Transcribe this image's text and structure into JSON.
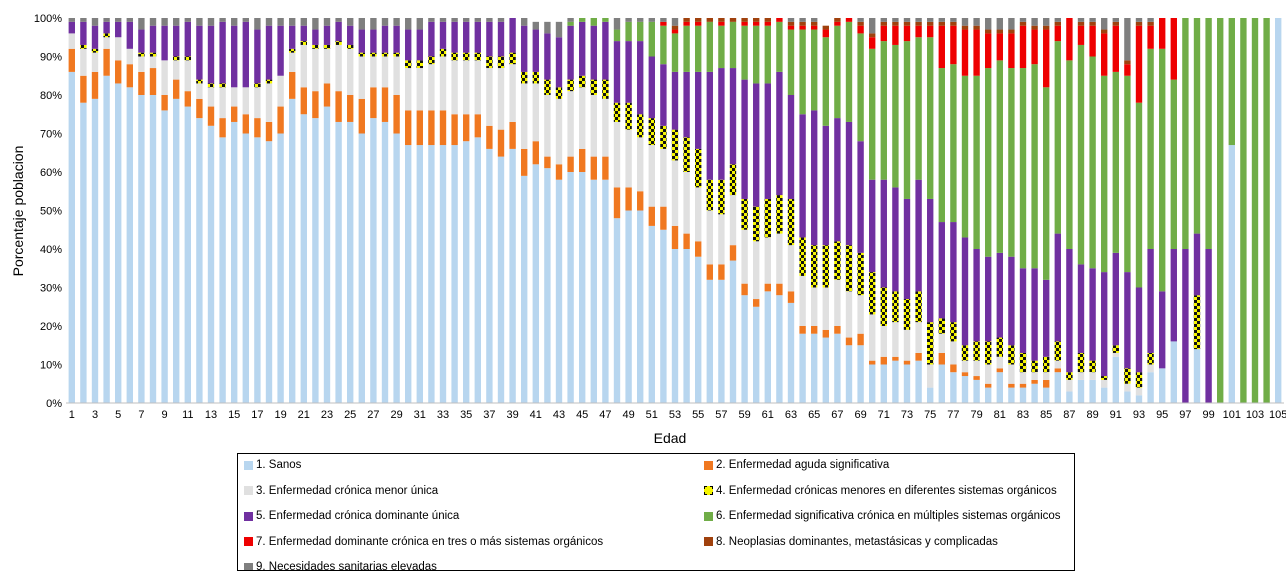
{
  "chart_data": {
    "type": "bar",
    "stacked": "percent",
    "xlabel": "Edad",
    "ylabel": "Porcentaje poblacion",
    "ylim": [
      0,
      100
    ],
    "y_ticks": [
      "0%",
      "10%",
      "20%",
      "30%",
      "40%",
      "50%",
      "60%",
      "70%",
      "80%",
      "90%",
      "100%"
    ],
    "categories": [
      1,
      2,
      3,
      4,
      5,
      6,
      7,
      8,
      9,
      10,
      11,
      12,
      13,
      14,
      15,
      16,
      17,
      18,
      19,
      20,
      21,
      22,
      23,
      24,
      25,
      26,
      27,
      28,
      29,
      30,
      31,
      32,
      33,
      34,
      35,
      36,
      37,
      38,
      39,
      40,
      41,
      42,
      43,
      44,
      45,
      46,
      47,
      48,
      49,
      50,
      51,
      52,
      53,
      54,
      55,
      56,
      57,
      58,
      59,
      60,
      61,
      62,
      63,
      64,
      65,
      66,
      67,
      68,
      69,
      70,
      71,
      72,
      73,
      74,
      75,
      76,
      77,
      78,
      79,
      80,
      81,
      82,
      83,
      84,
      85,
      86,
      87,
      88,
      89,
      90,
      91,
      92,
      93,
      94,
      95,
      96,
      97,
      98,
      99,
      100,
      101,
      102,
      103,
      104,
      105
    ],
    "x_tick_labels": [
      "1",
      "3",
      "5",
      "7",
      "9",
      "11",
      "13",
      "15",
      "17",
      "19",
      "21",
      "23",
      "25",
      "27",
      "29",
      "31",
      "33",
      "35",
      "37",
      "39",
      "41",
      "43",
      "45",
      "47",
      "49",
      "51",
      "53",
      "55",
      "57",
      "59",
      "61",
      "63",
      "65",
      "67",
      "69",
      "71",
      "73",
      "75",
      "77",
      "79",
      "81",
      "83",
      "85",
      "87",
      "89",
      "91",
      "93",
      "95",
      "97",
      "99",
      "101",
      "103",
      "105"
    ],
    "grid": false,
    "legend_position": "bottom",
    "series": [
      {
        "name": "1. Sanos",
        "color": "#b8d6ef",
        "pattern": "solid",
        "values": [
          86,
          78,
          79,
          85,
          83,
          82,
          80,
          80,
          76,
          79,
          77,
          74,
          72,
          69,
          73,
          70,
          69,
          68,
          70,
          79,
          75,
          74,
          77,
          73,
          73,
          70,
          74,
          73,
          70,
          67,
          67,
          67,
          67,
          67,
          68,
          69,
          66,
          64,
          66,
          59,
          62,
          61,
          58,
          60,
          60,
          58,
          58,
          48,
          50,
          50,
          46,
          45,
          40,
          40,
          38,
          32,
          32,
          37,
          28,
          25,
          29,
          28,
          26,
          18,
          18,
          17,
          18,
          15,
          15,
          10,
          10,
          11,
          10,
          11,
          4,
          10,
          8,
          7,
          6,
          4,
          8,
          4,
          4,
          5,
          4,
          8,
          3,
          6,
          6,
          4,
          12,
          3,
          2,
          8,
          9,
          16,
          0,
          14,
          0,
          0,
          67,
          0,
          0,
          0,
          100
        ]
      },
      {
        "name": "2. Enfermedad aguda significativa",
        "color": "#f07820",
        "pattern": "solid",
        "values": [
          6,
          7,
          7,
          7,
          6,
          6,
          6,
          7,
          4,
          5,
          4,
          5,
          5,
          5,
          4,
          5,
          5,
          5,
          7,
          7,
          7,
          7,
          6,
          8,
          7,
          9,
          8,
          9,
          10,
          9,
          9,
          9,
          9,
          8,
          7,
          6,
          6,
          7,
          7,
          7,
          6,
          3,
          4,
          4,
          6,
          6,
          6,
          8,
          6,
          5,
          5,
          6,
          6,
          4,
          4,
          4,
          4,
          4,
          3,
          2,
          2,
          3,
          3,
          2,
          2,
          2,
          2,
          2,
          3,
          1,
          2,
          1,
          1,
          2,
          0,
          3,
          2,
          1,
          1,
          1,
          1,
          1,
          1,
          1,
          2,
          1,
          0,
          0,
          0,
          0,
          0,
          0,
          0,
          0,
          0,
          0,
          0,
          0,
          0,
          0,
          0,
          0,
          0,
          0,
          0
        ]
      },
      {
        "name": "3. Enfermedad crónica menor única",
        "color": "#e0e0e0",
        "pattern": "solid",
        "values": [
          4,
          7,
          5,
          3,
          6,
          4,
          4,
          3,
          9,
          5,
          8,
          4,
          5,
          8,
          5,
          7,
          8,
          10,
          8,
          5,
          11,
          11,
          9,
          12,
          12,
          11,
          8,
          8,
          10,
          11,
          11,
          12,
          14,
          14,
          14,
          14,
          15,
          16,
          15,
          17,
          15,
          16,
          17,
          17,
          16,
          16,
          15,
          17,
          15,
          14,
          16,
          15,
          17,
          16,
          14,
          14,
          13,
          13,
          14,
          15,
          12,
          13,
          12,
          13,
          10,
          11,
          12,
          12,
          10,
          12,
          8,
          9,
          8,
          8,
          6,
          5,
          6,
          3,
          4,
          5,
          3,
          5,
          3,
          2,
          2,
          2,
          3,
          2,
          2,
          2,
          1,
          2,
          2,
          2,
          0,
          0,
          0,
          0,
          0,
          0,
          0,
          0,
          0,
          0,
          0
        ]
      },
      {
        "name": "4. Enfermedad crónicas menores en diferentes sistemas orgánicos",
        "color": "#f5f500",
        "pattern": "dashed",
        "values": [
          0,
          1,
          1,
          1,
          0,
          0,
          1,
          1,
          0,
          1,
          1,
          1,
          1,
          1,
          0,
          0,
          1,
          1,
          0,
          1,
          1,
          1,
          1,
          1,
          1,
          1,
          1,
          1,
          1,
          2,
          2,
          2,
          2,
          2,
          2,
          2,
          3,
          3,
          3,
          3,
          3,
          4,
          3,
          3,
          3,
          4,
          5,
          5,
          7,
          6,
          7,
          6,
          8,
          9,
          10,
          8,
          9,
          8,
          8,
          9,
          10,
          10,
          12,
          10,
          11,
          11,
          10,
          12,
          11,
          11,
          10,
          8,
          8,
          8,
          11,
          4,
          5,
          4,
          5,
          6,
          5,
          5,
          5,
          3,
          4,
          5,
          2,
          5,
          3,
          1,
          2,
          4,
          4,
          3,
          0,
          0,
          0,
          14,
          0,
          0,
          0,
          0,
          0,
          0,
          0
        ]
      },
      {
        "name": "5. Enfermedad crónica dominante única",
        "color": "#7030a0",
        "pattern": "solid",
        "values": [
          3,
          6,
          6,
          3,
          4,
          7,
          6,
          7,
          9,
          8,
          9,
          14,
          15,
          16,
          16,
          17,
          14,
          14,
          13,
          6,
          4,
          4,
          5,
          5,
          5,
          6,
          6,
          7,
          7,
          8,
          8,
          9,
          7,
          8,
          8,
          8,
          9,
          9,
          9,
          12,
          11,
          12,
          13,
          14,
          14,
          14,
          15,
          16,
          16,
          19,
          16,
          16,
          15,
          17,
          20,
          28,
          29,
          25,
          31,
          32,
          30,
          32,
          27,
          32,
          35,
          31,
          32,
          32,
          29,
          24,
          28,
          27,
          26,
          29,
          32,
          25,
          26,
          28,
          24,
          22,
          22,
          23,
          22,
          24,
          20,
          28,
          32,
          23,
          24,
          27,
          24,
          25,
          22,
          27,
          20,
          24,
          40,
          16,
          40,
          0,
          0,
          0,
          0,
          0,
          0
        ]
      },
      {
        "name": "6. Enfermedad significativa crónica en múltiples sistemas orgánicos",
        "color": "#70ad47",
        "pattern": "solid",
        "values": [
          0,
          0,
          0,
          0,
          0,
          0,
          0,
          0,
          0,
          0,
          0,
          0,
          0,
          0,
          0,
          0,
          0,
          0,
          0,
          0,
          0,
          0,
          0,
          0,
          0,
          0,
          0,
          0,
          0,
          0,
          0,
          0,
          0,
          0,
          0,
          0,
          0,
          0,
          0,
          0,
          0,
          0,
          0,
          1,
          1,
          2,
          1,
          3,
          5,
          5,
          9,
          10,
          10,
          12,
          12,
          13,
          11,
          12,
          14,
          15,
          15,
          13,
          17,
          22,
          21,
          23,
          24,
          26,
          28,
          34,
          36,
          37,
          41,
          37,
          42,
          40,
          41,
          42,
          45,
          49,
          50,
          49,
          52,
          53,
          50,
          50,
          49,
          57,
          55,
          51,
          47,
          51,
          48,
          52,
          63,
          44,
          60,
          70,
          60,
          100,
          33,
          100,
          100,
          100,
          0
        ]
      },
      {
        "name": "7. Enfermedad dominante crónica en tres o más sistemas orgánicos",
        "color": "#ee0000",
        "pattern": "solid",
        "values": [
          0,
          0,
          0,
          0,
          0,
          0,
          0,
          0,
          0,
          0,
          0,
          0,
          0,
          0,
          0,
          0,
          0,
          0,
          0,
          0,
          0,
          0,
          0,
          0,
          0,
          0,
          0,
          0,
          0,
          0,
          0,
          0,
          0,
          0,
          0,
          0,
          0,
          0,
          0,
          0,
          0,
          0,
          0,
          0,
          0,
          0,
          0,
          0,
          0,
          0,
          0,
          1,
          1,
          1,
          1,
          0,
          1,
          0,
          1,
          1,
          1,
          1,
          1,
          1,
          1,
          2,
          1,
          1,
          2,
          3,
          4,
          5,
          4,
          3,
          3,
          11,
          10,
          12,
          12,
          9,
          7,
          9,
          11,
          9,
          15,
          4,
          11,
          5,
          8,
          11,
          12,
          3,
          20,
          6,
          8,
          16,
          0,
          0,
          0,
          0,
          0,
          0,
          0,
          0,
          0
        ]
      },
      {
        "name": "8. Neoplasias dominantes, metastásicas y complicadas",
        "color": "#a0410d",
        "pattern": "solid",
        "values": [
          0,
          0,
          0,
          0,
          0,
          0,
          0,
          0,
          0,
          0,
          0,
          0,
          0,
          0,
          0,
          0,
          0,
          0,
          0,
          0,
          0,
          0,
          0,
          0,
          0,
          0,
          0,
          0,
          0,
          0,
          0,
          0,
          0,
          0,
          0,
          0,
          0,
          0,
          0,
          0,
          0,
          0,
          0,
          0,
          0,
          0,
          0,
          0,
          0,
          0,
          0,
          0,
          1,
          1,
          1,
          1,
          1,
          1,
          1,
          1,
          1,
          0,
          1,
          1,
          1,
          1,
          1,
          0,
          1,
          1,
          1,
          1,
          1,
          1,
          1,
          1,
          1,
          1,
          1,
          1,
          1,
          1,
          1,
          1,
          1,
          1,
          1,
          1,
          1,
          1,
          1,
          1,
          1,
          1,
          0,
          0,
          0,
          0,
          0,
          0,
          0,
          0,
          0,
          0,
          0
        ]
      },
      {
        "name": "9. Necesidades sanitarias elevadas",
        "color": "#7f7f7f",
        "pattern": "solid",
        "values": [
          1,
          1,
          2,
          1,
          1,
          1,
          3,
          2,
          2,
          2,
          1,
          2,
          2,
          1,
          2,
          1,
          3,
          2,
          2,
          2,
          2,
          3,
          2,
          1,
          2,
          3,
          3,
          2,
          2,
          3,
          3,
          1,
          1,
          1,
          1,
          1,
          1,
          1,
          0,
          2,
          2,
          3,
          4,
          1,
          0,
          0,
          0,
          3,
          1,
          1,
          1,
          1,
          2,
          0,
          0,
          0,
          0,
          0,
          0,
          0,
          0,
          0,
          1,
          1,
          1,
          0,
          0,
          0,
          1,
          4,
          1,
          1,
          1,
          1,
          1,
          1,
          1,
          2,
          2,
          3,
          3,
          3,
          1,
          2,
          2,
          1,
          1,
          1,
          1,
          3,
          1,
          11,
          1,
          1,
          0,
          0,
          0,
          0,
          0,
          0,
          0,
          0,
          0,
          0,
          0
        ]
      }
    ]
  }
}
